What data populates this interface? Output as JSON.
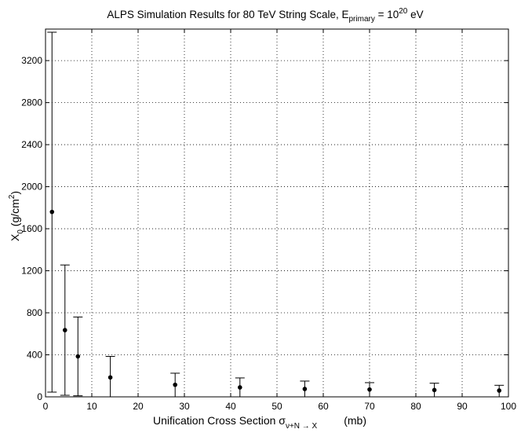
{
  "chart_data": {
    "type": "scatter",
    "title": {
      "main": "ALPS  Simulation  Results  for  80 TeV  String  Scale,  E",
      "sub": "primary",
      "eq": " = 10",
      "sup": "20",
      "tail": " eV"
    },
    "xlabel": {
      "main": "Unification  Cross  Section  σ",
      "sub": "ν+N → X",
      "unit": "(mb)"
    },
    "ylabel": {
      "main": "X",
      "sub": "0",
      "mid": "  (g/cm",
      "sup": "2",
      "end": ")"
    },
    "xlim": [
      0,
      100
    ],
    "ylim": [
      0,
      3500
    ],
    "xticks": [
      0,
      10,
      20,
      30,
      40,
      50,
      60,
      70,
      80,
      90,
      100
    ],
    "yticks": [
      0,
      400,
      800,
      1200,
      1600,
      2000,
      2400,
      2800,
      3200
    ],
    "grid": true,
    "points": [
      {
        "x": 1.4,
        "y": 1760,
        "low": 45,
        "high": 3470
      },
      {
        "x": 4.2,
        "y": 635,
        "low": 15,
        "high": 1255
      },
      {
        "x": 7.0,
        "y": 385,
        "low": 10,
        "high": 760
      },
      {
        "x": 14.0,
        "y": 185,
        "low": 0,
        "high": 385
      },
      {
        "x": 28.0,
        "y": 115,
        "low": 0,
        "high": 225
      },
      {
        "x": 42.0,
        "y": 90,
        "low": 0,
        "high": 180
      },
      {
        "x": 56.0,
        "y": 75,
        "low": 0,
        "high": 150
      },
      {
        "x": 70.0,
        "y": 70,
        "low": 0,
        "high": 135
      },
      {
        "x": 84.0,
        "y": 65,
        "low": 0,
        "high": 130
      },
      {
        "x": 98.0,
        "y": 60,
        "low": 0,
        "high": 110
      }
    ]
  }
}
